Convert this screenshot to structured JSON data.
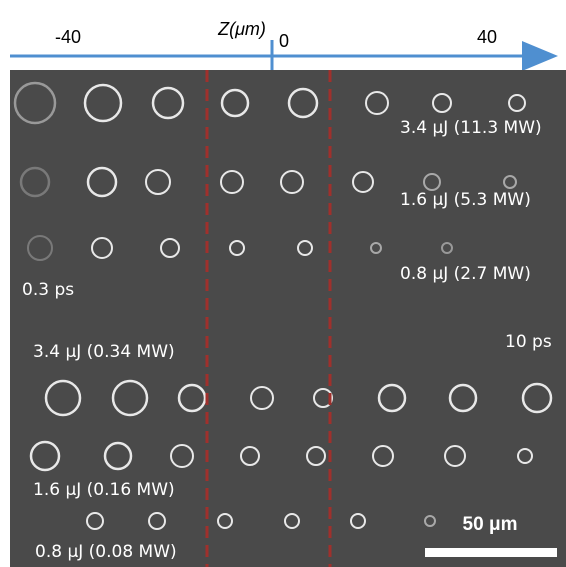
{
  "axis": {
    "title": "Z(μm)",
    "tick_labels": [
      "-40",
      "0",
      "40"
    ]
  },
  "annotations": [
    "3.4 μJ (11.3 MW)",
    "1.6 μJ (5.3 MW)",
    "0.8 μJ (2.7 MW)",
    "0.3 ps",
    "3.4 μJ (0.34 MW)",
    "10 ps",
    "1.6 μJ (0.16 MW)",
    "0.8 μJ (0.08 MW)"
  ],
  "scale_bar": {
    "label": "50 μm"
  }
}
